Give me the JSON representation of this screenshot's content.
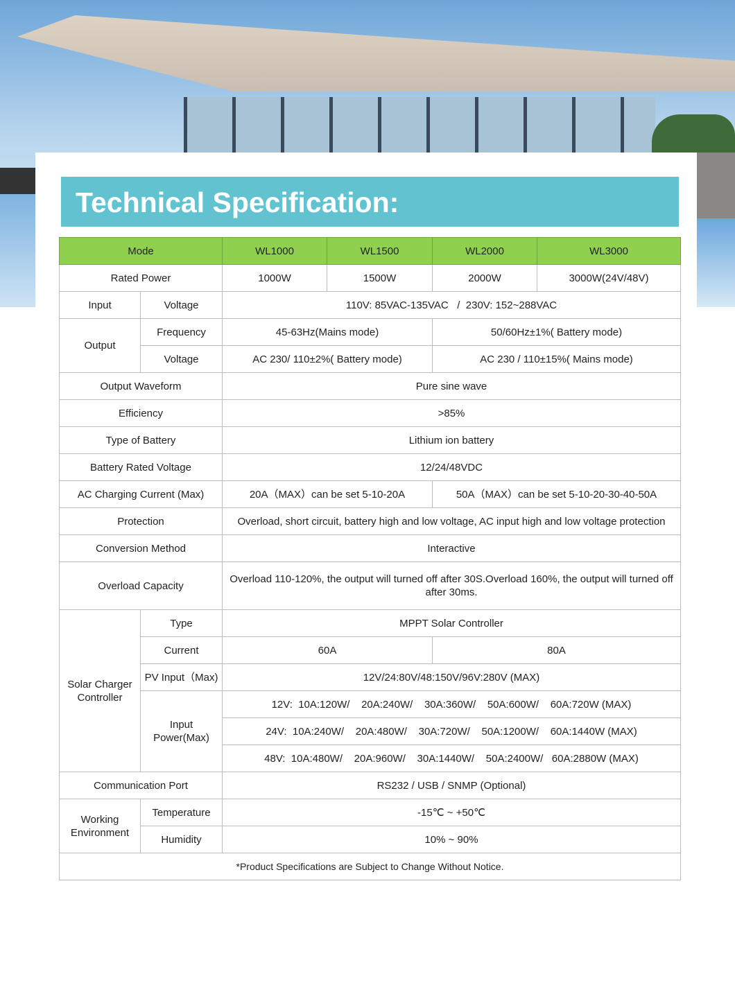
{
  "title": "Technical Specification:",
  "colors": {
    "title_bar": "#62c3d0",
    "header_row": "#8fd14f"
  },
  "header": {
    "mode": "Mode",
    "models": [
      "WL1000",
      "WL1500",
      "WL2000",
      "WL3000"
    ]
  },
  "rated_power": {
    "label": "Rated Power",
    "values": [
      "1000W",
      "1500W",
      "2000W",
      "3000W(24V/48V)"
    ]
  },
  "input": {
    "label": "Input",
    "sub": "Voltage",
    "value": "110V: 85VAC-135VAC   /  230V: 152~288VAC"
  },
  "output": {
    "label": "Output",
    "frequency": {
      "label": "Frequency",
      "values": [
        "45-63Hz(Mains mode)",
        "50/60Hz±1%( Battery mode)"
      ]
    },
    "voltage": {
      "label": "Voltage",
      "values": [
        "AC 230/ 110±2%( Battery mode)",
        "AC 230 / 110±15%( Mains mode)"
      ]
    }
  },
  "waveform": {
    "label": "Output Waveform",
    "value": "Pure sine wave"
  },
  "efficiency": {
    "label": "Efficiency",
    "value": ">85%"
  },
  "battery_type": {
    "label": "Type of Battery",
    "value": "Lithium ion battery"
  },
  "battery_voltage": {
    "label": "Battery Rated Voltage",
    "value": "12/24/48VDC"
  },
  "ac_charging": {
    "label": "AC Charging Current  (Max)",
    "values": [
      "20A（MAX）can be set 5-10-20A",
      "50A（MAX）can be set 5-10-20-30-40-50A"
    ]
  },
  "protection": {
    "label": "Protection",
    "value": "Overload, short circuit,  battery high and low voltage, AC input high and low voltage protection"
  },
  "conversion": {
    "label": "Conversion Method",
    "value": "Interactive"
  },
  "overload": {
    "label": "Overload Capacity",
    "value": "Overload 110-120%, the output will turned off after 30S.Overload 160%, the output will turned off after 30ms."
  },
  "solar": {
    "label": "Solar Charger Controller",
    "type": {
      "label": "Type",
      "value": "MPPT Solar Controller"
    },
    "current": {
      "label": "Current",
      "values": [
        "60A",
        "80A"
      ]
    },
    "pv_input": {
      "label": "PV Input（Max)",
      "value": "12V/24:80V/48:150V/96V:280V (MAX)"
    },
    "input_power": {
      "label": "Input Power(Max)",
      "values": [
        "12V:  10A:120W/    20A:240W/    30A:360W/    50A:600W/    60A:720W (MAX)",
        "24V:  10A:240W/    20A:480W/    30A:720W/    50A:1200W/    60A:1440W (MAX)",
        "48V:  10A:480W/    20A:960W/    30A:1440W/    50A:2400W/   60A:2880W (MAX)"
      ]
    }
  },
  "comm": {
    "label": "Communication Port",
    "value": "RS232 / USB / SNMP (Optional)"
  },
  "environment": {
    "label": "Working Environment",
    "temperature": {
      "label": "Temperature",
      "value": "-15℃ ~ +50℃"
    },
    "humidity": {
      "label": "Humidity",
      "value": "10% ~ 90%"
    }
  },
  "notice": "*Product Specifications are Subject to Change Without Notice."
}
